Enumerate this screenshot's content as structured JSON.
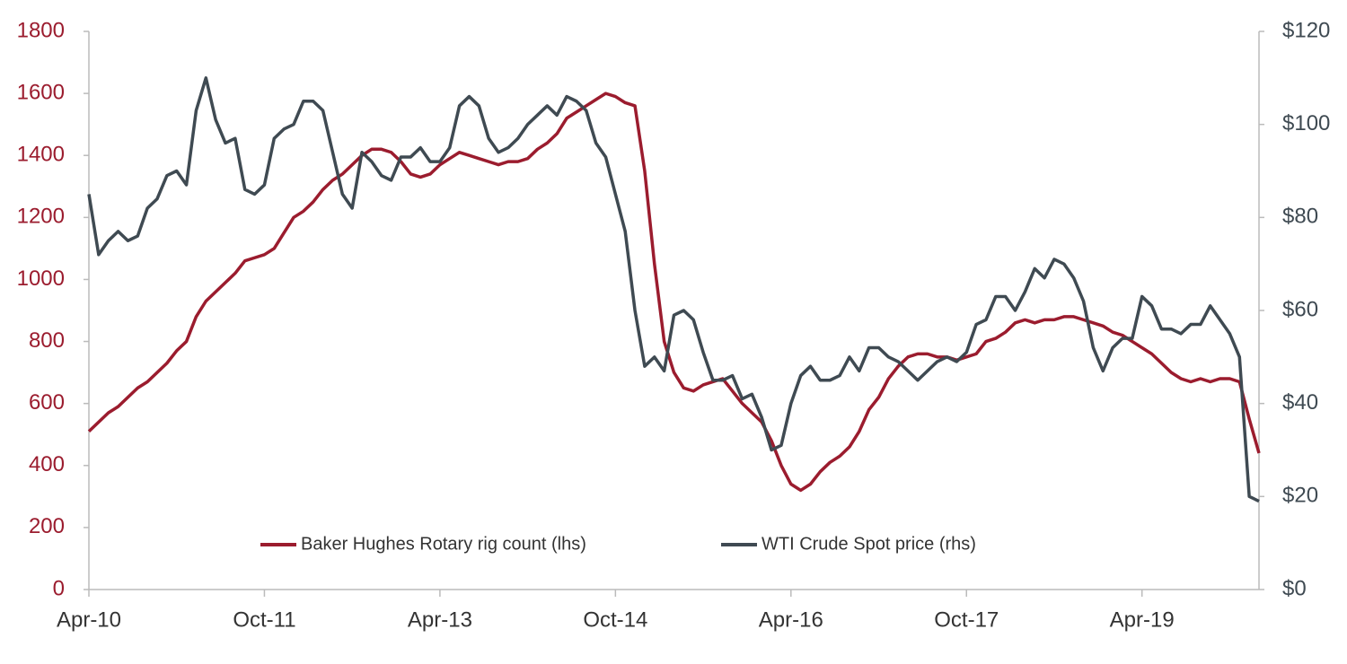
{
  "chart_data": {
    "type": "line",
    "x": [
      "Apr-10",
      null,
      null,
      null,
      null,
      null,
      null,
      null,
      null,
      null,
      null,
      null,
      null,
      null,
      null,
      null,
      null,
      null,
      "Oct-11",
      null,
      null,
      null,
      null,
      null,
      null,
      null,
      null,
      null,
      null,
      null,
      null,
      null,
      null,
      null,
      null,
      null,
      "Apr-13",
      null,
      null,
      null,
      null,
      null,
      null,
      null,
      null,
      null,
      null,
      null,
      null,
      null,
      null,
      null,
      null,
      null,
      "Oct-14",
      null,
      null,
      null,
      null,
      null,
      null,
      null,
      null,
      null,
      null,
      null,
      null,
      null,
      null,
      null,
      null,
      null,
      "Apr-16",
      null,
      null,
      null,
      null,
      null,
      null,
      null,
      null,
      null,
      null,
      null,
      null,
      null,
      null,
      null,
      null,
      null,
      "Oct-17",
      null,
      null,
      null,
      null,
      null,
      null,
      null,
      null,
      null,
      null,
      null,
      null,
      null,
      null,
      null,
      null,
      null,
      "Apr-19",
      null,
      null,
      null,
      null,
      null,
      null,
      null,
      null,
      null,
      null,
      null,
      null
    ],
    "series": [
      {
        "name": "Baker Hughes Rotary rig count (lhs)",
        "color": "#9b1c2e",
        "axis": "y",
        "values": [
          510,
          540,
          570,
          590,
          620,
          650,
          670,
          700,
          730,
          770,
          800,
          880,
          930,
          960,
          990,
          1020,
          1060,
          1070,
          1080,
          1100,
          1150,
          1200,
          1220,
          1250,
          1290,
          1320,
          1340,
          1370,
          1400,
          1420,
          1420,
          1410,
          1380,
          1340,
          1330,
          1340,
          1370,
          1390,
          1410,
          1400,
          1390,
          1380,
          1370,
          1380,
          1380,
          1390,
          1420,
          1440,
          1470,
          1520,
          1540,
          1560,
          1580,
          1600,
          1590,
          1570,
          1560,
          1350,
          1050,
          800,
          700,
          650,
          640,
          660,
          670,
          680,
          640,
          600,
          570,
          540,
          480,
          400,
          340,
          320,
          340,
          380,
          410,
          430,
          460,
          510,
          580,
          620,
          680,
          720,
          750,
          760,
          760,
          750,
          750,
          740,
          750,
          760,
          800,
          810,
          830,
          860,
          870,
          860,
          870,
          870,
          880,
          880,
          870,
          860,
          850,
          830,
          820,
          800,
          780,
          760,
          730,
          700,
          680,
          670,
          680,
          670,
          680,
          680,
          670,
          550,
          440
        ]
      },
      {
        "name": "WTI Crude Spot price (rhs)",
        "color": "#3f4a52",
        "axis": "y2",
        "values": [
          85,
          72,
          75,
          77,
          75,
          76,
          82,
          84,
          89,
          90,
          87,
          103,
          110,
          101,
          96,
          97,
          86,
          85,
          87,
          97,
          99,
          100,
          105,
          105,
          103,
          94,
          85,
          82,
          94,
          92,
          89,
          88,
          93,
          93,
          95,
          92,
          92,
          95,
          104,
          106,
          104,
          97,
          94,
          95,
          97,
          100,
          102,
          104,
          102,
          106,
          105,
          103,
          96,
          93,
          85,
          77,
          60,
          48,
          50,
          47,
          59,
          60,
          58,
          51,
          45,
          45,
          46,
          41,
          42,
          37,
          30,
          31,
          40,
          46,
          48,
          45,
          45,
          46,
          50,
          47,
          52,
          52,
          50,
          49,
          47,
          45,
          47,
          49,
          50,
          49,
          51,
          57,
          58,
          63,
          63,
          60,
          64,
          69,
          67,
          71,
          70,
          67,
          62,
          52,
          47,
          52,
          54,
          54,
          63,
          61,
          56,
          56,
          55,
          57,
          57,
          61,
          58,
          55,
          50,
          20,
          19
        ]
      }
    ],
    "ylim": [
      0,
      1800
    ],
    "yticks": [
      0,
      200,
      400,
      600,
      800,
      1000,
      1200,
      1400,
      1600,
      1800
    ],
    "y2lim": [
      0,
      120
    ],
    "y2ticks": [
      {
        "value": 0,
        "label": "$0"
      },
      {
        "value": 20,
        "label": "$20"
      },
      {
        "value": 40,
        "label": "$40"
      },
      {
        "value": 60,
        "label": "$60"
      },
      {
        "value": 80,
        "label": "$80"
      },
      {
        "value": 100,
        "label": "$100"
      },
      {
        "value": 120,
        "label": "$120"
      }
    ]
  }
}
